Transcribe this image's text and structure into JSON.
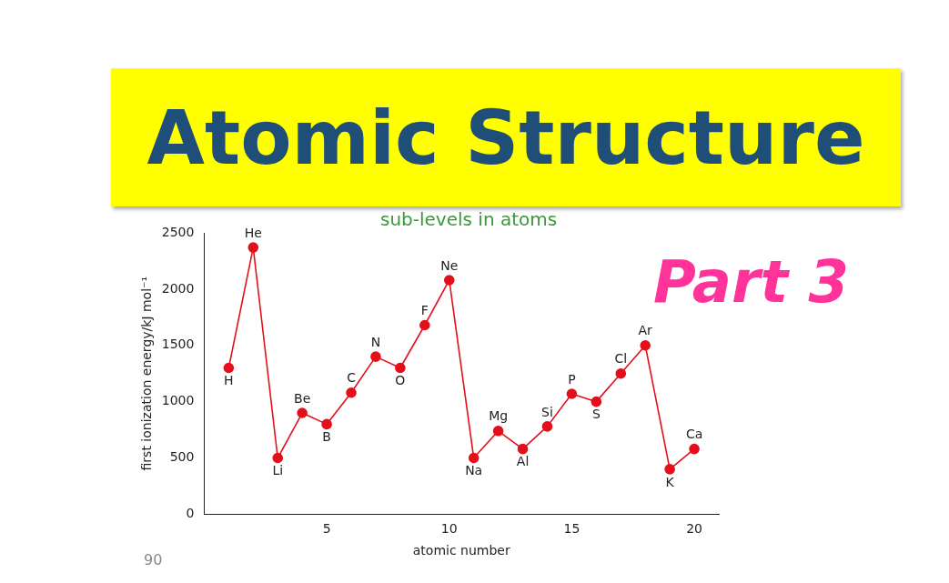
{
  "chart_data": {
    "type": "line",
    "title": "Atomic Structure",
    "subtitle": "Part 3",
    "xlabel": "atomic number",
    "ylabel": "first ionization energy/kJ mol⁻¹",
    "x": [
      1,
      2,
      3,
      4,
      5,
      6,
      7,
      8,
      9,
      10,
      11,
      12,
      13,
      14,
      15,
      16,
      17,
      18,
      19,
      20
    ],
    "series": [
      {
        "color": "#e3101c",
        "values": [
          1300,
          2370,
          500,
          900,
          800,
          1080,
          1400,
          1300,
          1680,
          2080,
          500,
          740,
          580,
          780,
          1070,
          1000,
          1250,
          1500,
          400,
          580
        ]
      }
    ],
    "xlim": [
      0,
      21
    ],
    "xticks": [
      5,
      10,
      15,
      20
    ],
    "ylim": [
      0,
      2500
    ],
    "yticks": [
      0,
      500,
      1000,
      1500,
      2000,
      2500
    ],
    "grid": false,
    "legend": false,
    "marker": "circle",
    "line_style": "solid",
    "annotations": [
      "sub-levels in atoms",
      "90",
      {
        "text": "H",
        "x": 1,
        "y": 1300
      },
      {
        "text": "He",
        "x": 2,
        "y": 2370
      },
      {
        "text": "Li",
        "x": 3,
        "y": 500
      },
      {
        "text": "Be",
        "x": 4,
        "y": 900
      },
      {
        "text": "B",
        "x": 5,
        "y": 800
      },
      {
        "text": "C",
        "x": 6,
        "y": 1080
      },
      {
        "text": "N",
        "x": 7,
        "y": 1400
      },
      {
        "text": "O",
        "x": 8,
        "y": 1300
      },
      {
        "text": "F",
        "x": 9,
        "y": 1680
      },
      {
        "text": "Ne",
        "x": 10,
        "y": 2080
      },
      {
        "text": "Na",
        "x": 11,
        "y": 500
      },
      {
        "text": "Mg",
        "x": 12,
        "y": 740
      },
      {
        "text": "Al",
        "x": 13,
        "y": 580
      },
      {
        "text": "Si",
        "x": 14,
        "y": 780
      },
      {
        "text": "P",
        "x": 15,
        "y": 1070
      },
      {
        "text": "S",
        "x": 16,
        "y": 1000
      },
      {
        "text": "Cl",
        "x": 17,
        "y": 1250
      },
      {
        "text": "Ar",
        "x": 18,
        "y": 1500
      },
      {
        "text": "K",
        "x": 19,
        "y": 400
      },
      {
        "text": "Ca",
        "x": 20,
        "y": 580
      }
    ]
  }
}
